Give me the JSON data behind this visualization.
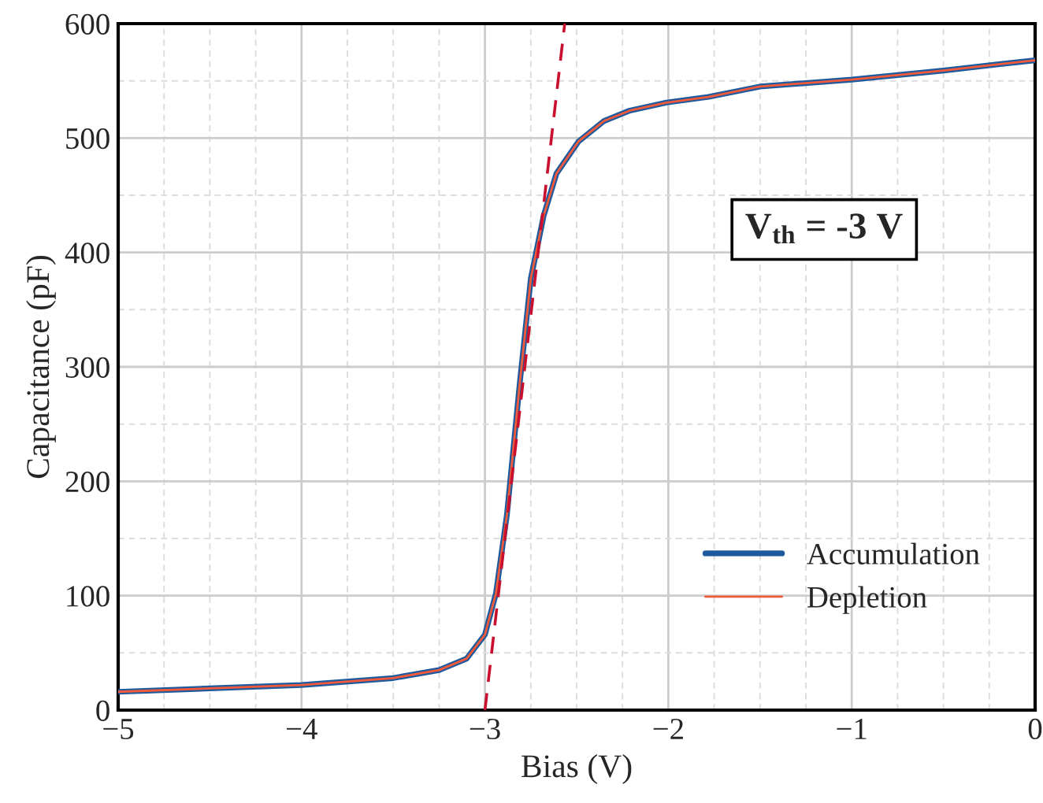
{
  "chart_data": {
    "type": "line",
    "xlabel": "Bias (V)",
    "ylabel": "Capacitance (pF)",
    "x": [
      -5,
      -4.5,
      -4,
      -3.5,
      -3.25,
      -3.1,
      -3.0,
      -2.94,
      -2.88,
      -2.81,
      -2.75,
      -2.68,
      -2.61,
      -2.49,
      -2.35,
      -2.21,
      -2.01,
      -1.78,
      -1.5,
      -1,
      -0.5,
      0
    ],
    "series": [
      {
        "name": "Accumulation",
        "color": "#1f5a9e",
        "values": [
          16,
          19,
          22,
          28,
          35,
          45,
          66,
          102,
          171,
          286,
          377,
          432,
          469,
          497,
          515,
          524,
          531,
          536,
          545,
          551,
          559,
          568
        ]
      },
      {
        "name": "Depletion",
        "color": "#f25a3a",
        "values": [
          16,
          19,
          22,
          28,
          35,
          45,
          66,
          102,
          171,
          286,
          377,
          432,
          469,
          497,
          515,
          524,
          531,
          536,
          545,
          551,
          559,
          568
        ]
      },
      {
        "type": "line",
        "color": "#c8102e",
        "line_style": "dashed",
        "x": [
          -3.0,
          -2.565
        ],
        "values": [
          0,
          600
        ]
      }
    ],
    "annotations": [
      "V$_{th}$ = -3 V"
    ],
    "xlim": [
      -5,
      0
    ],
    "ylim": [
      0,
      600
    ],
    "xticks": [
      {
        "value": -5,
        "label": "−5"
      },
      {
        "value": -4.75,
        "label": null
      },
      {
        "value": -4.5,
        "label": null
      },
      {
        "value": -4.25,
        "label": null
      },
      {
        "value": -4,
        "label": "−4"
      },
      {
        "value": -3.75,
        "label": null
      },
      {
        "value": -3.5,
        "label": null
      },
      {
        "value": -3.25,
        "label": null
      },
      {
        "value": -3,
        "label": "−3"
      },
      {
        "value": -2.75,
        "label": null
      },
      {
        "value": -2.5,
        "label": null
      },
      {
        "value": -2.25,
        "label": null
      },
      {
        "value": -2,
        "label": "−2"
      },
      {
        "value": -1.75,
        "label": null
      },
      {
        "value": -1.5,
        "label": null
      },
      {
        "value": -1.25,
        "label": null
      },
      {
        "value": -1,
        "label": "−1"
      },
      {
        "value": -0.75,
        "label": null
      },
      {
        "value": -0.5,
        "label": null
      },
      {
        "value": -0.25,
        "label": null
      },
      0
    ],
    "yticks": [
      0,
      {
        "value": 50,
        "label": null
      },
      100,
      {
        "value": 150,
        "label": null
      },
      200,
      {
        "value": 250,
        "label": null
      },
      300,
      {
        "value": 350,
        "label": null
      },
      400,
      {
        "value": 450,
        "label": null
      },
      500,
      {
        "value": 550,
        "label": null
      },
      600
    ],
    "grid": true,
    "legend": "bottom right",
    "line_style": "solid",
    "marker": "none"
  }
}
